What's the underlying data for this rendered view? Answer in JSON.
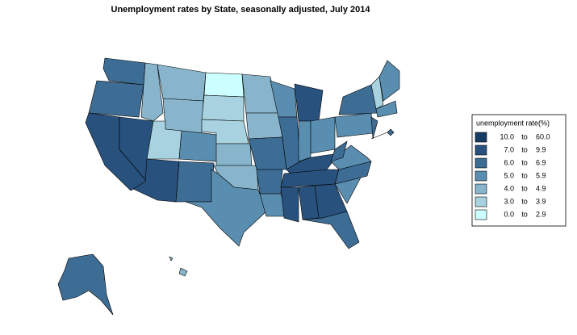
{
  "title": "Unemployment rates by State, seasonally adjusted,  July  2014",
  "legend": {
    "title": "unemployment rate(%)",
    "items": [
      {
        "from": "10.0",
        "sep": "to",
        "to": "60.0",
        "color": "#173c63"
      },
      {
        "from": "7.0",
        "sep": "to",
        "to": "9.9",
        "color": "#28527d"
      },
      {
        "from": "6.0",
        "sep": "to",
        "to": "6.9",
        "color": "#3d6c94"
      },
      {
        "from": "5.0",
        "sep": "to",
        "to": "5.9",
        "color": "#5a8eb0"
      },
      {
        "from": "4.0",
        "sep": "to",
        "to": "4.9",
        "color": "#88b5cb"
      },
      {
        "from": "3.0",
        "sep": "to",
        "to": "3.9",
        "color": "#a8d2df"
      },
      {
        "from": "0.0",
        "sep": "to",
        "to": "2.9",
        "color": "#ccffff"
      }
    ]
  }
}
